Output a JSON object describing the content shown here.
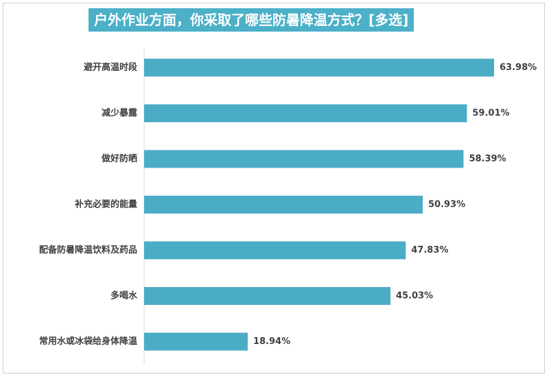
{
  "chart_data": {
    "type": "bar",
    "orientation": "horizontal",
    "title": "户外作业方面，你采取了哪些防暑降温方式？[多选]",
    "categories": [
      "避开高温时段",
      "减少暴露",
      "做好防晒",
      "补充必要的能量",
      "配备防暑降温饮料及药品",
      "多喝水",
      "常用水或冰袋给身体降温"
    ],
    "values": [
      63.98,
      59.01,
      58.39,
      50.93,
      47.83,
      45.03,
      18.94
    ],
    "value_labels": [
      "63.98%",
      "59.01%",
      "58.39%",
      "50.93%",
      "47.83%",
      "45.03%",
      "18.94%"
    ],
    "unit": "%",
    "xlim": [
      0,
      63.98
    ],
    "grid": false,
    "legend": "none",
    "colors": {
      "bar": "#4bacc6",
      "title_bg": "#4bb0c8",
      "title_text": "#ffffff",
      "label_text": "#404040"
    }
  }
}
